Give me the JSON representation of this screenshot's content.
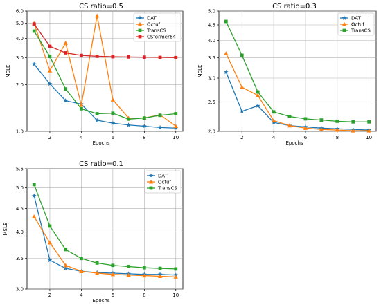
{
  "chart_data": [
    {
      "type": "line",
      "title": "CS ratio=0.5",
      "xlabel": "Epochs",
      "ylabel": "MSLE",
      "xlim": [
        0.55,
        10.45
      ],
      "ylim": [
        1.0,
        6.0
      ],
      "yscale": "log",
      "grid": true,
      "legend_position": "top-right",
      "x_ticks": [
        "2",
        "4",
        "6",
        "8",
        "10"
      ],
      "y_ticks": [
        "1.0",
        "2.0",
        "3.0",
        "4.0",
        "5.0",
        "6.0"
      ],
      "x": [
        1,
        2,
        3,
        4,
        5,
        6,
        7,
        8,
        9,
        10
      ],
      "series": [
        {
          "name": "DAT",
          "color": "#1f77b4",
          "marker": "star",
          "values": [
            2.72,
            2.03,
            1.58,
            1.5,
            1.18,
            1.13,
            1.1,
            1.08,
            1.06,
            1.05
          ]
        },
        {
          "name": "Octuf",
          "color": "#ff7f0e",
          "marker": "triangle",
          "values": [
            5.0,
            2.47,
            3.73,
            1.48,
            5.6,
            1.6,
            1.22,
            1.22,
            1.28,
            1.08
          ]
        },
        {
          "name": "TransCS",
          "color": "#2ca02c",
          "marker": "square",
          "values": [
            4.45,
            3.05,
            1.88,
            1.4,
            1.3,
            1.31,
            1.2,
            1.22,
            1.27,
            1.3
          ]
        },
        {
          "name": "CSformer64",
          "color": "#d62728",
          "marker": "square",
          "values": [
            4.95,
            3.55,
            3.22,
            3.1,
            3.06,
            3.04,
            3.03,
            3.02,
            3.01,
            3.0
          ]
        }
      ]
    },
    {
      "type": "line",
      "title": "CS ratio=0.3",
      "xlabel": "Epochs",
      "ylabel": "MSLE",
      "xlim": [
        0.55,
        10.45
      ],
      "ylim": [
        2.0,
        5.0
      ],
      "yscale": "log",
      "grid": true,
      "legend_position": "top-right",
      "x_ticks": [
        "2",
        "4",
        "6",
        "8",
        "10"
      ],
      "y_ticks": [
        "2.0",
        "2.5",
        "3.0",
        "3.5",
        "4.0",
        "4.5",
        "5.0"
      ],
      "x": [
        1,
        2,
        3,
        4,
        5,
        6,
        7,
        8,
        9,
        10
      ],
      "series": [
        {
          "name": "DAT",
          "color": "#1f77b4",
          "marker": "star",
          "values": [
            3.14,
            2.33,
            2.43,
            2.14,
            2.09,
            2.07,
            2.05,
            2.04,
            2.03,
            2.02
          ]
        },
        {
          "name": "Octuf",
          "color": "#ff7f0e",
          "marker": "triangle",
          "values": [
            3.62,
            2.8,
            2.63,
            2.17,
            2.09,
            2.05,
            2.03,
            2.02,
            2.01,
            2.01
          ]
        },
        {
          "name": "TransCS",
          "color": "#2ca02c",
          "marker": "square",
          "values": [
            4.62,
            3.57,
            2.7,
            2.32,
            2.24,
            2.2,
            2.18,
            2.16,
            2.15,
            2.15
          ]
        }
      ]
    },
    {
      "type": "line",
      "title": "CS ratio=0.1",
      "xlabel": "Epochs",
      "ylabel": "MSLE",
      "xlim": [
        0.55,
        10.45
      ],
      "ylim": [
        3.0,
        5.5
      ],
      "yscale": "log",
      "grid": true,
      "legend_position": "top-right",
      "x_ticks": [
        "2",
        "4",
        "6",
        "8",
        "10"
      ],
      "y_ticks": [
        "3.0",
        "3.5",
        "4.0",
        "4.5",
        "5.0",
        "5.5"
      ],
      "x": [
        1,
        2,
        3,
        4,
        5,
        6,
        7,
        8,
        9,
        10
      ],
      "series": [
        {
          "name": "DAT",
          "color": "#1f77b4",
          "marker": "star",
          "values": [
            4.8,
            3.47,
            3.33,
            3.28,
            3.26,
            3.25,
            3.24,
            3.23,
            3.23,
            3.22
          ]
        },
        {
          "name": "Octuf",
          "color": "#ff7f0e",
          "marker": "triangle",
          "values": [
            4.32,
            3.79,
            3.38,
            3.28,
            3.25,
            3.23,
            3.22,
            3.21,
            3.2,
            3.19
          ]
        },
        {
          "name": "TransCS",
          "color": "#2ca02c",
          "marker": "square",
          "values": [
            5.08,
            4.12,
            3.66,
            3.5,
            3.42,
            3.38,
            3.36,
            3.34,
            3.33,
            3.32
          ]
        }
      ]
    }
  ]
}
